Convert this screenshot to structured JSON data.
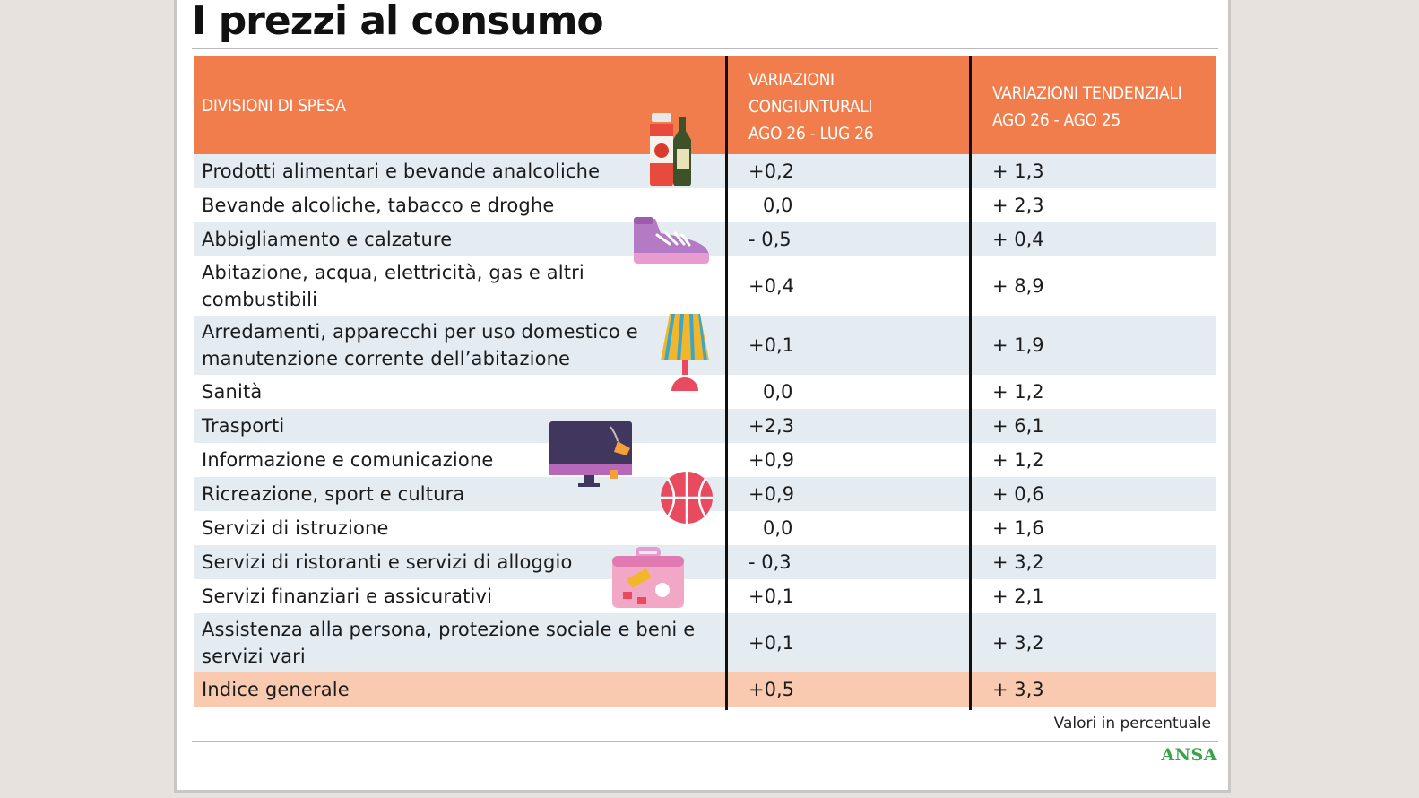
{
  "title": "I prezzi al consumo",
  "header": {
    "col1": "DIVISIONI DI SPESA",
    "col2": [
      "VARIAZIONI",
      "CONGIUNTURALI",
      "AGO 26 - LUG 26"
    ],
    "col3": [
      "VARIAZIONI TENDENZIALI",
      "AGO 26 - AGO 25"
    ]
  },
  "chart_data": {
    "type": "table",
    "columns": [
      "DIVISIONI DI SPESA",
      "VARIAZIONI CONGIUNTURALI AGO 26 - LUG 26",
      "VARIAZIONI TENDENZIALI AGO 26 - AGO 25"
    ],
    "rows": [
      {
        "label": "Prodotti alimentari e bevande analcoliche",
        "congiunturali": "+0,2",
        "tendenziali": "+ 1,3"
      },
      {
        "label": "Bevande alcoliche, tabacco e droghe",
        "congiunturali": "0,0",
        "tendenziali": "+ 2,3"
      },
      {
        "label": "Abbigliamento e calzature",
        "congiunturali": "- 0,5",
        "tendenziali": "+ 0,4"
      },
      {
        "label": "Abitazione, acqua, elettricità, gas e altri combustibili",
        "congiunturali": "+0,4",
        "tendenziali": "+ 8,9"
      },
      {
        "label": "Arredamenti, apparecchi per uso domestico e manutenzione corrente dell’abitazione",
        "congiunturali": "+0,1",
        "tendenziali": "+ 1,9"
      },
      {
        "label": "Sanità",
        "congiunturali": "0,0",
        "tendenziali": "+ 1,2"
      },
      {
        "label": "Trasporti",
        "congiunturali": "+2,3",
        "tendenziali": "+ 6,1"
      },
      {
        "label": "Informazione e comunicazione",
        "congiunturali": "+0,9",
        "tendenziali": "+ 1,2"
      },
      {
        "label": "Ricreazione, sport e cultura",
        "congiunturali": "+0,9",
        "tendenziali": "+ 0,6"
      },
      {
        "label": "Servizi di istruzione",
        "congiunturali": "0,0",
        "tendenziali": "+ 1,6"
      },
      {
        "label": "Servizi di ristoranti e servizi di alloggio",
        "congiunturali": "- 0,3",
        "tendenziali": "+ 3,2"
      },
      {
        "label": "Servizi finanziari e assicurativi",
        "congiunturali": "+0,1",
        "tendenziali": "+ 2,1"
      },
      {
        "label": "Assistenza alla persona, protezione sociale e beni e servizi vari",
        "congiunturali": "+0,1",
        "tendenziali": "+ 3,2"
      },
      {
        "label": "Indice generale",
        "congiunturali": "+0,5",
        "tendenziali": "+ 3,3"
      }
    ]
  },
  "note": "Valori in percentuale",
  "logo": "ANSA",
  "colors": {
    "header": "#f07d4b",
    "alt_row": "#e4ecf2",
    "total_row": "#f9c9b0",
    "logo": "#3aa34a"
  },
  "icons": [
    "ketchup-oil-bottles-icon",
    "sneaker-icon",
    "lamp-icon",
    "monitor-icon",
    "basketball-icon",
    "suitcase-icon"
  ]
}
